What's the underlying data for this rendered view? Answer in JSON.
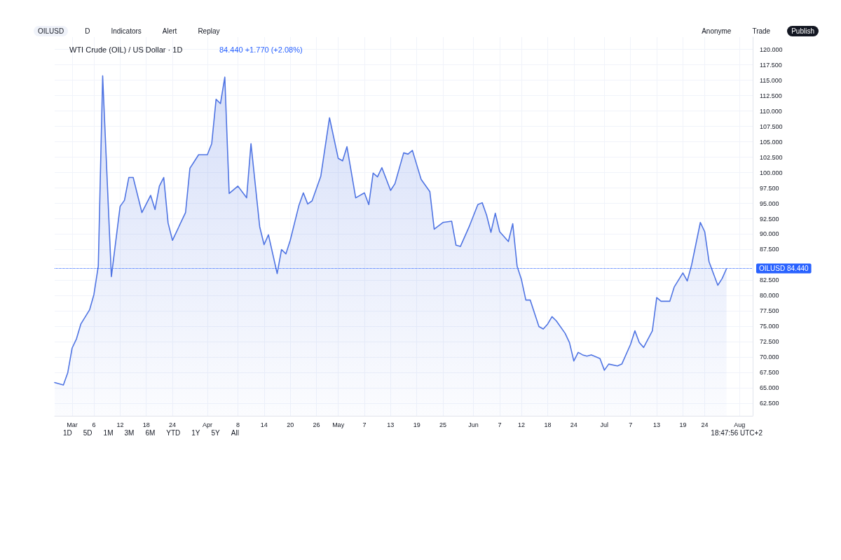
{
  "chart_data": {
    "type": "area",
    "title": "WTI Crude (OIL) / US Dollar · 1D",
    "subtitle": "84.440 +1.770 (+2.08%)",
    "annotations": [
      "OILUSD",
      "D",
      "Indicators",
      "Alert",
      "Replay",
      "Anonyme",
      "Trade",
      "Publish",
      "1D",
      "5D",
      "1M",
      "3M",
      "6M",
      "YTD",
      "1Y",
      "5Y",
      "All",
      "18:47:56 UTC+2"
    ],
    "x": [
      "--02-25",
      "--02-27",
      "--02-28",
      "--03-01",
      "--03-02",
      "--03-03",
      "--03-05",
      "--03-06",
      "--03-07",
      "--03-08",
      "--03-10",
      "--03-12",
      "--03-13",
      "--03-14",
      "--03-15",
      "--03-17",
      "--03-19",
      "--03-20",
      "--03-21",
      "--03-22",
      "--03-23",
      "--03-24",
      "--03-27",
      "--03-28",
      "--03-29",
      "--03-30",
      "--04-01",
      "--04-02",
      "--04-03",
      "--04-04",
      "--04-05",
      "--04-06",
      "--04-08",
      "--04-10",
      "--04-11",
      "--04-13",
      "--04-14",
      "--04-15",
      "--04-17",
      "--04-18",
      "--04-19",
      "--04-20",
      "--04-22",
      "--04-23",
      "--04-24",
      "--04-25",
      "--04-27",
      "--04-29",
      "--05-01",
      "--05-02",
      "--05-03",
      "--05-05",
      "--05-07",
      "--05-08",
      "--05-09",
      "--05-10",
      "--05-11",
      "--05-13",
      "--05-14",
      "--05-16",
      "--05-17",
      "--05-18",
      "--05-20",
      "--05-22",
      "--05-23",
      "--05-25",
      "--05-27",
      "--05-28",
      "--05-29",
      "--05-31",
      "--06-02",
      "--06-03",
      "--06-04",
      "--06-05",
      "--06-06",
      "--06-07",
      "--06-09",
      "--06-10",
      "--06-11",
      "--06-12",
      "--06-13",
      "--06-14",
      "--06-16",
      "--06-17",
      "--06-18",
      "--06-19",
      "--06-20",
      "--06-22",
      "--06-23",
      "--06-24",
      "--06-25",
      "--06-26",
      "--06-27",
      "--06-28",
      "--06-30",
      "--07-01",
      "--07-02",
      "--07-04",
      "--07-05",
      "--07-07",
      "--07-08",
      "--07-09",
      "--07-10",
      "--07-12",
      "--07-13",
      "--07-14",
      "--07-16",
      "--07-17",
      "--07-19",
      "--07-20",
      "--07-21",
      "--07-23",
      "--07-24",
      "--07-25",
      "--07-27",
      "--07-28",
      "--07-29"
    ],
    "series": [
      {
        "color": "#4f74e3",
        "values": [
          65.9,
          65.5,
          67.5,
          71.5,
          73.0,
          75.4,
          77.7,
          80.2,
          84.8,
          115.7,
          83.1,
          94.5,
          95.5,
          99.2,
          99.2,
          93.5,
          96.3,
          94.0,
          97.8,
          99.2,
          91.8,
          89.0,
          93.5,
          100.7,
          101.8,
          102.9,
          102.9,
          104.7,
          111.9,
          111.2,
          115.5,
          96.6,
          97.8,
          95.9,
          104.7,
          91.2,
          88.3,
          89.9,
          83.6,
          87.5,
          86.8,
          89.0,
          94.7,
          96.7,
          94.9,
          95.4,
          99.4,
          108.9,
          102.3,
          101.9,
          104.2,
          95.9,
          96.7,
          94.8,
          99.9,
          99.3,
          100.8,
          97.1,
          98.2,
          103.2,
          103.0,
          103.6,
          98.9,
          96.9,
          90.8,
          91.9,
          92.1,
          88.2,
          88.0,
          91.2,
          94.8,
          95.1,
          93.1,
          90.3,
          93.4,
          90.4,
          88.8,
          91.7,
          84.8,
          82.6,
          79.3,
          79.3,
          75.0,
          74.6,
          75.4,
          76.6,
          75.9,
          73.9,
          72.4,
          69.4,
          70.8,
          70.4,
          70.2,
          70.4,
          69.8,
          67.9,
          68.9,
          68.6,
          68.9,
          72.1,
          74.3,
          72.4,
          71.6,
          74.3,
          79.7,
          79.1,
          79.1,
          81.4,
          83.7,
          82.4,
          85.0,
          91.9,
          90.4,
          85.5,
          81.7,
          82.8,
          84.4
        ]
      }
    ],
    "xlim": [
      "--02-25",
      "--08-04"
    ],
    "xticks": [
      {
        "value": "--03-01",
        "label": "Mar"
      },
      {
        "value": "--03-06",
        "label": "6"
      },
      {
        "value": "--03-12",
        "label": "12"
      },
      {
        "value": "--03-18",
        "label": "18"
      },
      {
        "value": "--03-24",
        "label": "24"
      },
      {
        "value": "--04-01",
        "label": "Apr"
      },
      {
        "value": "--04-08",
        "label": "8"
      },
      {
        "value": "--04-14",
        "label": "14"
      },
      {
        "value": "--04-20",
        "label": "20"
      },
      {
        "value": "--04-26",
        "label": "26"
      },
      {
        "value": "--05-01",
        "label": "May"
      },
      {
        "value": "--05-07",
        "label": "7"
      },
      {
        "value": "--05-13",
        "label": "13"
      },
      {
        "value": "--05-19",
        "label": "19"
      },
      {
        "value": "--05-25",
        "label": "25"
      },
      {
        "value": "--06-01",
        "label": "Jun"
      },
      {
        "value": "--06-07",
        "label": "7"
      },
      {
        "value": "--06-12",
        "label": "12"
      },
      {
        "value": "--06-18",
        "label": "18"
      },
      {
        "value": "--06-24",
        "label": "24"
      },
      {
        "value": "--07-01",
        "label": "Jul"
      },
      {
        "value": "--07-07",
        "label": "7"
      },
      {
        "value": "--07-13",
        "label": "13"
      },
      {
        "value": "--07-19",
        "label": "19"
      },
      {
        "value": "--07-24",
        "label": "24"
      },
      {
        "value": "--08-01",
        "label": "Aug"
      }
    ],
    "ylim": [
      60.5,
      122
    ],
    "yticks": [
      {
        "value": 62.5,
        "label": "62.500"
      },
      {
        "value": 65,
        "label": "65.000"
      },
      {
        "value": 67.5,
        "label": "67.500"
      },
      {
        "value": 70,
        "label": "70.000"
      },
      {
        "value": 72.5,
        "label": "72.500"
      },
      {
        "value": 75,
        "label": "75.000"
      },
      {
        "value": 77.5,
        "label": "77.500"
      },
      {
        "value": 80,
        "label": "80.000"
      },
      {
        "value": 82.5,
        "label": "82.500"
      },
      {
        "value": 85,
        "label": null
      },
      {
        "value": 87.5,
        "label": "87.500"
      },
      {
        "value": 90,
        "label": "90.000"
      },
      {
        "value": 92.5,
        "label": "92.500"
      },
      {
        "value": 95,
        "label": "95.000"
      },
      {
        "value": 97.5,
        "label": "97.500"
      },
      {
        "value": 100,
        "label": "100.000"
      },
      {
        "value": 102.5,
        "label": "102.500"
      },
      {
        "value": 105,
        "label": "105.000"
      },
      {
        "value": 107.5,
        "label": "107.500"
      },
      {
        "value": 110,
        "label": "110.000"
      },
      {
        "value": 112.5,
        "label": "112.500"
      },
      {
        "value": 115,
        "label": "115.000"
      },
      {
        "value": 117.5,
        "label": "117.500"
      },
      {
        "value": 120,
        "label": "120.000"
      }
    ],
    "ref_lines": [
      {
        "axis": "y",
        "value": 84.44,
        "label": "OILUSD 84.440",
        "color": "#2962ff",
        "line_style": "dotted"
      }
    ],
    "grid": true,
    "marker": "none",
    "line_style": "solid"
  }
}
